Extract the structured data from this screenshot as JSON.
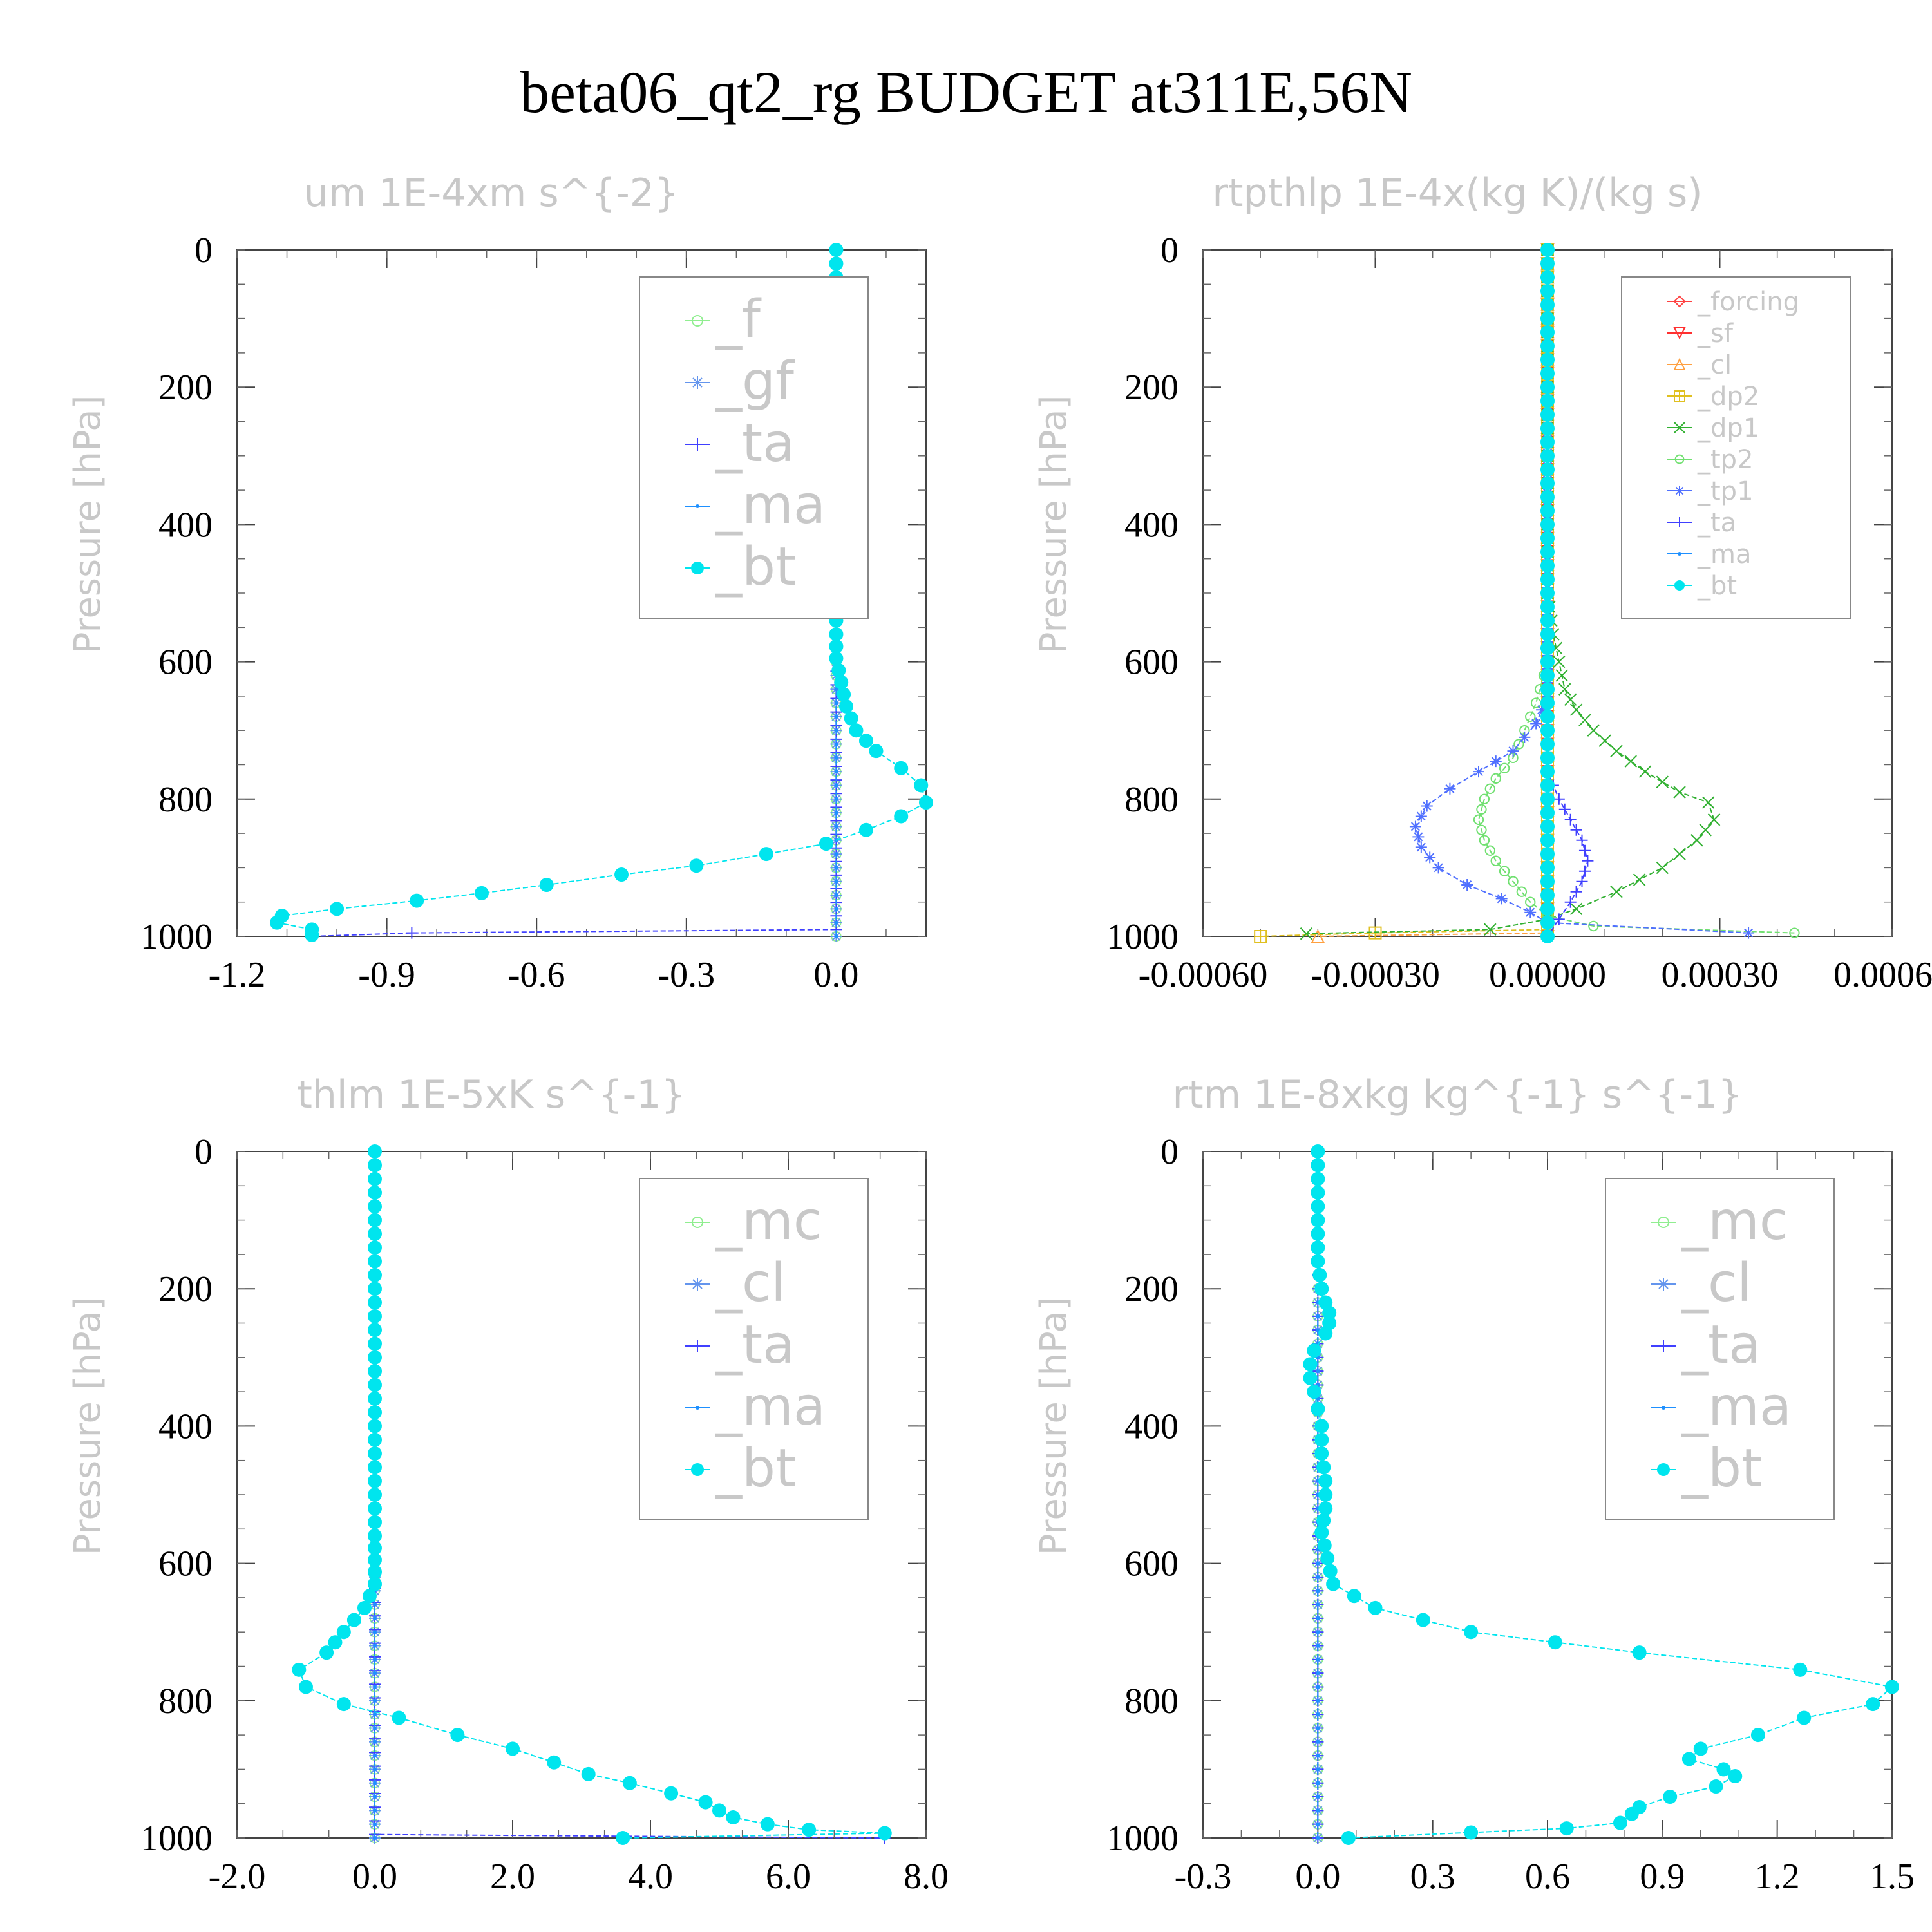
{
  "title": "beta06_qt2_rg  BUDGET at311E,56N",
  "chart_data": [
    {
      "type": "line",
      "title": "um  1E-4xm s^{-2}",
      "ylabel": "Pressure [hPa]",
      "xlim": [
        -1.2,
        0.18
      ],
      "ylim": [
        1000,
        0
      ],
      "xticks": [
        "-1.2",
        "-0.9",
        "-0.6",
        "-0.3",
        "0.0"
      ],
      "xtick_values": [
        -1.2,
        -0.9,
        -0.6,
        -0.3,
        0.0
      ],
      "yticks": [
        "0",
        "200",
        "400",
        "600",
        "800",
        "1000"
      ],
      "ytick_values": [
        0,
        200,
        400,
        600,
        800,
        1000
      ],
      "legend_position": "top-right",
      "legend_large": true,
      "series": [
        {
          "name": "_f",
          "color": "#90ee90",
          "marker": "circle-open",
          "x": [
            0.0,
            0.0
          ],
          "y": [
            0,
            1000
          ]
        },
        {
          "name": "_gf",
          "color": "#6495ed",
          "marker": "asterisk",
          "x": [
            0.0,
            0.0
          ],
          "y": [
            0,
            1000
          ]
        },
        {
          "name": "_ta",
          "color": "#4040ff",
          "marker": "plus",
          "x": [
            0.0,
            0.0,
            -0.85,
            -1.05
          ],
          "y": [
            0,
            990,
            995,
            1000
          ]
        },
        {
          "name": "_ma",
          "color": "#1e90ff",
          "marker": "dot",
          "x": [
            0.0,
            0.0
          ],
          "y": [
            0,
            1000
          ]
        },
        {
          "name": "_bt",
          "color": "#00e5ee",
          "marker": "disc",
          "x": [
            0.0,
            0.0,
            0.0,
            0.0,
            0.0,
            -0.005,
            -0.02,
            -0.025,
            -0.02,
            0.01,
            0.015,
            0.015,
            0.005,
            -0.005,
            0.0,
            0.0,
            0.0,
            0.0,
            0.0,
            0.01,
            0.02,
            0.04,
            0.08,
            0.13,
            0.17,
            0.18,
            0.13,
            0.06,
            -0.02,
            -0.14,
            -0.28,
            -0.43,
            -0.58,
            -0.71,
            -0.84,
            -1.0,
            -1.11,
            -1.12,
            -1.05,
            -1.05
          ],
          "y": [
            0,
            40,
            80,
            120,
            160,
            200,
            225,
            240,
            255,
            290,
            310,
            335,
            360,
            395,
            440,
            480,
            520,
            560,
            595,
            630,
            665,
            700,
            730,
            755,
            780,
            805,
            825,
            845,
            865,
            880,
            897,
            910,
            925,
            937,
            948,
            960,
            970,
            980,
            990,
            998
          ]
        }
      ]
    },
    {
      "type": "line",
      "title": "rtpthlp  1E-4x(kg K)/(kg s)",
      "ylabel": "Pressure [hPa]",
      "xlim": [
        -0.0006,
        0.0006
      ],
      "ylim": [
        1000,
        0
      ],
      "xticks": [
        "-0.00060",
        "-0.00030",
        "0.00000",
        "0.00030",
        "0.00060"
      ],
      "xtick_values": [
        -0.0006,
        -0.0003,
        0.0,
        0.0003,
        0.0006
      ],
      "yticks": [
        "0",
        "200",
        "400",
        "600",
        "800",
        "1000"
      ],
      "ytick_values": [
        0,
        200,
        400,
        600,
        800,
        1000
      ],
      "legend_position": "top-right",
      "legend_large": false,
      "series": [
        {
          "name": "_forcing",
          "color": "#ff4040",
          "marker": "diamond",
          "x": [
            0.0,
            0.0
          ],
          "y": [
            0,
            1000
          ]
        },
        {
          "name": "_sf",
          "color": "#ff3030",
          "marker": "tri-down",
          "x": [
            0.0,
            0.0
          ],
          "y": [
            0,
            1000
          ]
        },
        {
          "name": "_cl",
          "color": "#ffa040",
          "marker": "tri-up",
          "x": [
            0.0,
            0.0,
            -0.0004
          ],
          "y": [
            0,
            995,
            1000
          ]
        },
        {
          "name": "_dp2",
          "color": "#e0c020",
          "marker": "square-plus",
          "x": [
            0.0,
            0.0,
            -0.0003,
            -0.0005
          ],
          "y": [
            0,
            990,
            995,
            1000
          ]
        },
        {
          "name": "_dp1",
          "color": "#30b030",
          "marker": "cross",
          "x": [
            0.0,
            0.0,
            1e-05,
            2e-05,
            3e-05,
            5e-05,
            8e-05,
            0.00012,
            0.00017,
            0.00023,
            0.00028,
            0.00029,
            0.00026,
            0.0002,
            0.00012,
            5e-05,
            0.0,
            -0.0001,
            -0.00042
          ],
          "y": [
            0,
            500,
            560,
            600,
            640,
            670,
            700,
            730,
            760,
            790,
            805,
            830,
            860,
            900,
            935,
            960,
            975,
            990,
            996
          ]
        },
        {
          "name": "_tp2",
          "color": "#70e070",
          "marker": "circle-open",
          "x": [
            0.0,
            0.0,
            -2e-05,
            -4e-05,
            -6e-05,
            -9e-05,
            -0.00011,
            -0.00012,
            -0.00011,
            -9e-05,
            -6e-05,
            -3e-05,
            0.0,
            8e-05,
            0.00043
          ],
          "y": [
            0,
            600,
            660,
            700,
            740,
            770,
            800,
            830,
            860,
            890,
            920,
            950,
            970,
            985,
            995
          ]
        },
        {
          "name": "_tp1",
          "color": "#5070ff",
          "marker": "asterisk",
          "x": [
            0.0,
            0.0,
            -2e-05,
            -6e-05,
            -0.00012,
            -0.00017,
            -0.00021,
            -0.00023,
            -0.00022,
            -0.00019,
            -0.00014,
            -8e-05,
            -3e-05,
            0.0,
            0.00035
          ],
          "y": [
            0,
            650,
            690,
            730,
            760,
            785,
            810,
            840,
            870,
            900,
            925,
            945,
            965,
            980,
            995
          ]
        },
        {
          "name": "_ta",
          "color": "#4040ff",
          "marker": "plus",
          "x": [
            0.0,
            0.0,
            2e-05,
            4e-05,
            6e-05,
            7e-05,
            6e-05,
            4e-05,
            2e-05,
            0.0
          ],
          "y": [
            0,
            760,
            800,
            830,
            860,
            890,
            920,
            950,
            975,
            1000
          ]
        },
        {
          "name": "_ma",
          "color": "#1e90ff",
          "marker": "dot",
          "x": [
            0.0,
            0.0
          ],
          "y": [
            0,
            1000
          ]
        },
        {
          "name": "_bt",
          "color": "#00e5ee",
          "marker": "disc",
          "x": [
            0.0,
            0.0
          ],
          "y": [
            0,
            1000
          ]
        }
      ]
    },
    {
      "type": "line",
      "title": "thlm  1E-5xK s^{-1}",
      "ylabel": "Pressure [hPa]",
      "xlim": [
        -2.0,
        8.0
      ],
      "ylim": [
        1000,
        0
      ],
      "xticks": [
        "-2.0",
        "0.0",
        "2.0",
        "4.0",
        "6.0",
        "8.0"
      ],
      "xtick_values": [
        -2.0,
        0.0,
        2.0,
        4.0,
        6.0,
        8.0
      ],
      "yticks": [
        "0",
        "200",
        "400",
        "600",
        "800",
        "1000"
      ],
      "ytick_values": [
        0,
        200,
        400,
        600,
        800,
        1000
      ],
      "legend_position": "top-right",
      "legend_large": true,
      "series": [
        {
          "name": "_mc",
          "color": "#90ee90",
          "marker": "circle-open",
          "x": [
            0.0,
            0.0
          ],
          "y": [
            0,
            1000
          ]
        },
        {
          "name": "_cl",
          "color": "#6495ed",
          "marker": "asterisk",
          "x": [
            0.0,
            0.0
          ],
          "y": [
            0,
            1000
          ]
        },
        {
          "name": "_ta",
          "color": "#4040ff",
          "marker": "plus",
          "x": [
            0.0,
            0.0,
            7.4
          ],
          "y": [
            0,
            995,
            1000
          ]
        },
        {
          "name": "_ma",
          "color": "#1e90ff",
          "marker": "dot",
          "x": [
            0.0,
            0.0
          ],
          "y": [
            0,
            1000
          ]
        },
        {
          "name": "_bt",
          "color": "#00e5ee",
          "marker": "disc",
          "x": [
            0.0,
            0.0,
            0.0,
            0.0,
            0.0,
            0.0,
            0.0,
            0.0,
            0.0,
            0.0,
            0.0,
            0.0,
            0.0,
            0.0,
            0.0,
            0.0,
            -0.15,
            -0.45,
            -0.7,
            -1.1,
            -1.0,
            -0.45,
            0.35,
            1.2,
            2.0,
            2.6,
            3.1,
            3.7,
            4.3,
            4.8,
            5.0,
            5.2,
            5.7,
            6.3,
            7.4,
            3.6
          ],
          "y": [
            0,
            40,
            80,
            120,
            160,
            200,
            240,
            280,
            320,
            360,
            400,
            440,
            480,
            520,
            560,
            630,
            665,
            700,
            730,
            755,
            780,
            805,
            825,
            850,
            870,
            890,
            907,
            920,
            935,
            948,
            960,
            970,
            980,
            988,
            993,
            1000
          ]
        }
      ]
    },
    {
      "type": "line",
      "title": "rtm  1E-8xkg kg^{-1} s^{-1}",
      "ylabel": "Pressure [hPa]",
      "xlim": [
        -0.3,
        1.5
      ],
      "ylim": [
        1000,
        0
      ],
      "xticks": [
        "-0.3",
        "0.0",
        "0.3",
        "0.6",
        "0.9",
        "1.2",
        "1.5"
      ],
      "xtick_values": [
        -0.3,
        0.0,
        0.3,
        0.6,
        0.9,
        1.2,
        1.5
      ],
      "yticks": [
        "0",
        "200",
        "400",
        "600",
        "800",
        "1000"
      ],
      "ytick_values": [
        0,
        200,
        400,
        600,
        800,
        1000
      ],
      "legend_position": "top-right",
      "legend_large": true,
      "series": [
        {
          "name": "_mc",
          "color": "#90ee90",
          "marker": "circle-open",
          "x": [
            0.0,
            0.0
          ],
          "y": [
            0,
            1000
          ]
        },
        {
          "name": "_cl",
          "color": "#6495ed",
          "marker": "asterisk",
          "x": [
            0.0,
            0.0
          ],
          "y": [
            0,
            1000
          ]
        },
        {
          "name": "_ta",
          "color": "#4040ff",
          "marker": "plus",
          "x": [
            0.0,
            0.0
          ],
          "y": [
            0,
            1000
          ]
        },
        {
          "name": "_ma",
          "color": "#1e90ff",
          "marker": "dot",
          "x": [
            0.0,
            0.0
          ],
          "y": [
            0,
            1000
          ]
        },
        {
          "name": "_bt",
          "color": "#00e5ee",
          "marker": "disc",
          "x": [
            0.0,
            0.0,
            0.0,
            0.0,
            0.0,
            0.01,
            0.02,
            0.03,
            0.03,
            0.02,
            -0.01,
            -0.02,
            -0.02,
            -0.01,
            0.0,
            0.01,
            0.01,
            0.02,
            0.02,
            0.01,
            0.04,
            0.15,
            0.4,
            0.84,
            1.26,
            1.5,
            1.45,
            1.27,
            1.15,
            1.0,
            0.97,
            1.06,
            1.09,
            1.04,
            0.92,
            0.84,
            0.82,
            0.79,
            0.65,
            0.4,
            0.08
          ],
          "y": [
            0,
            40,
            80,
            120,
            160,
            200,
            220,
            235,
            250,
            265,
            290,
            310,
            330,
            350,
            375,
            400,
            440,
            480,
            520,
            555,
            630,
            665,
            700,
            730,
            755,
            780,
            805,
            825,
            850,
            870,
            885,
            900,
            910,
            925,
            940,
            955,
            965,
            978,
            986,
            992,
            1000
          ]
        }
      ]
    }
  ]
}
